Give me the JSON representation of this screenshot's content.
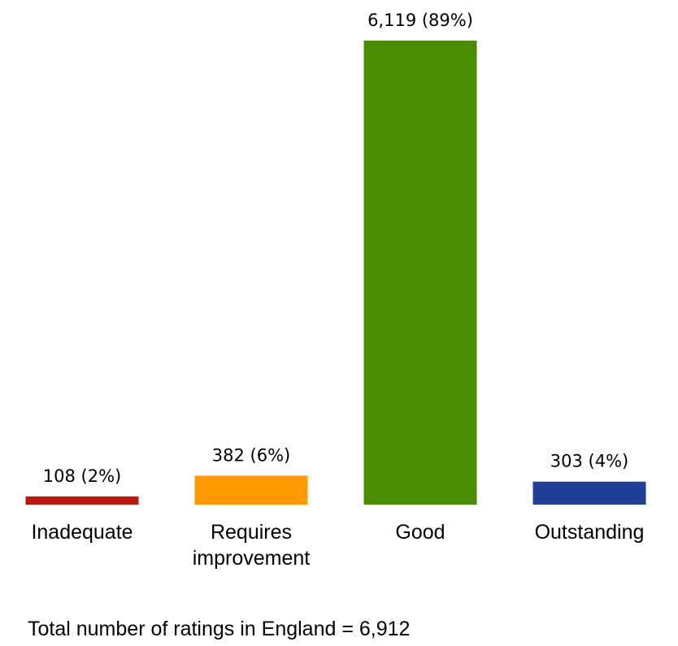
{
  "chart_data": {
    "type": "bar",
    "categories": [
      "Inadequate",
      "Requires improvement",
      "Good",
      "Outstanding"
    ],
    "category_lines": [
      [
        "Inadequate"
      ],
      [
        "Requires",
        "improvement"
      ],
      [
        "Good"
      ],
      [
        "Outstanding"
      ]
    ],
    "values": [
      108,
      382,
      6119,
      303
    ],
    "percentages": [
      2,
      6,
      89,
      4
    ],
    "data_labels": [
      "108 (2%)",
      "382 (6%)",
      "6,119 (89%)",
      "303 (4%)"
    ],
    "colors": [
      "#C0150A",
      "#FF9900",
      "#4A8C00",
      "#1F3F99"
    ],
    "ylim": [
      0,
      6119
    ],
    "axes_visible": false,
    "grid": false,
    "legend": "none",
    "title": "",
    "xlabel": "",
    "ylabel": ""
  },
  "footnote": "Total number of ratings in England = 6,912"
}
